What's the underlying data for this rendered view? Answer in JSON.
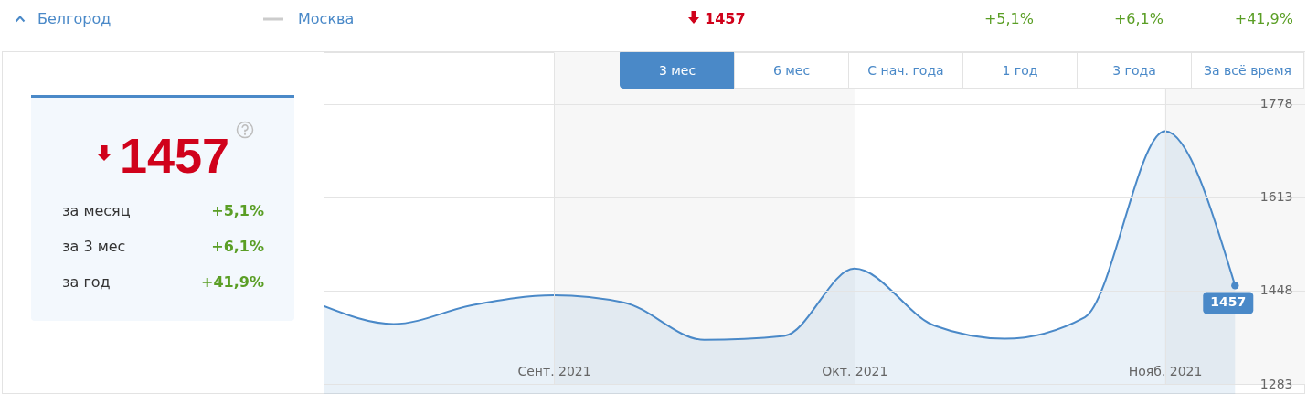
{
  "chart_data": {
    "type": "area",
    "x": [
      "2021-08-09",
      "2021-08-16",
      "2021-08-24",
      "2021-09-01",
      "2021-09-08",
      "2021-09-16",
      "2021-09-24",
      "2021-10-01",
      "2021-10-09",
      "2021-10-16",
      "2021-10-24",
      "2021-11-01",
      "2021-11-08"
    ],
    "series": [
      {
        "color": "#4a89c8",
        "values": [
          1421,
          1389,
          1423,
          1440,
          1427,
          1361,
          1368,
          1487,
          1386,
          1363,
          1401,
          1730,
          1457
        ],
        "value_labels": [
          null,
          null,
          null,
          null,
          null,
          null,
          null,
          null,
          null,
          null,
          null,
          null,
          "1457"
        ]
      }
    ],
    "xlim": [
      "2021-08-09",
      "2021-11-15"
    ],
    "ylim": [
      1283,
      1870
    ],
    "xticks": [
      {
        "value": "2021-09-01",
        "label": "Сент. 2021"
      },
      {
        "value": "2021-10-01",
        "label": "Окт. 2021"
      },
      {
        "value": "2021-11-01",
        "label": "Нояб. 2021"
      }
    ],
    "yticks": [
      1283,
      1448,
      1613,
      1778
    ],
    "grid": true,
    "bands": [
      {
        "axis": "x",
        "from": "2021-09-01",
        "to": "2021-10-01",
        "color": "#f7f7f7"
      },
      {
        "axis": "x",
        "from": "2021-11-01",
        "to": "2021-11-15",
        "color": "#f7f7f7"
      }
    ],
    "annotations": [
      "Белгород",
      "Москва",
      "1457",
      "+5,1%",
      "+6,1%",
      "+41,9%",
      "3 мес",
      "6 мес",
      "С нач. года",
      "1 год",
      "3 года",
      "За всё время",
      "1457",
      "за месяц",
      "+5,1%",
      "за 3 мес",
      "+6,1%",
      "за год",
      "+41,9%"
    ]
  }
}
